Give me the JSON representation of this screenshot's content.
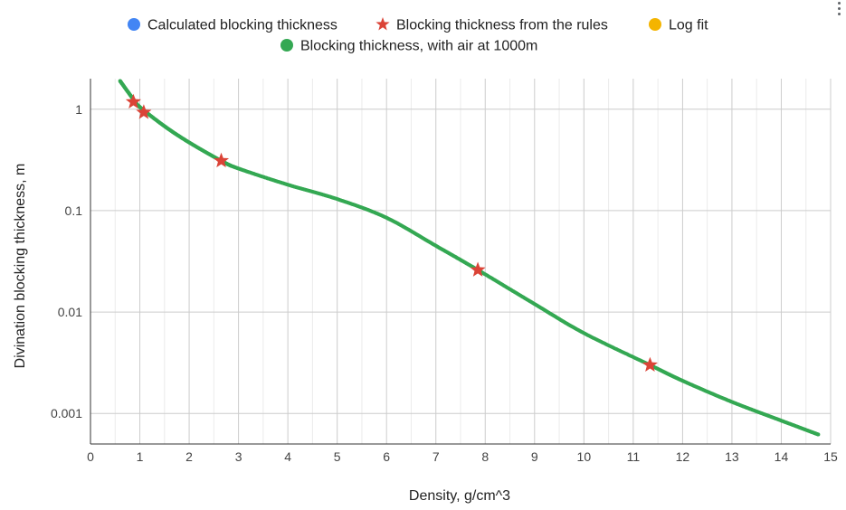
{
  "chart_data": {
    "type": "scatter",
    "xlabel": "Density, g/cm^3",
    "ylabel": "Divination blocking thickness, m",
    "xlim": [
      0,
      15
    ],
    "ylim": [
      0.0005,
      2
    ],
    "yscale": "log",
    "grid": true,
    "legend": "top",
    "x_ticks": [
      "0",
      "1",
      "2",
      "3",
      "4",
      "5",
      "6",
      "7",
      "8",
      "9",
      "10",
      "11",
      "12",
      "13",
      "14",
      "15"
    ],
    "y_ticks": [
      {
        "value": 1,
        "label": "1"
      },
      {
        "value": 0.1,
        "label": "0.1"
      },
      {
        "value": 0.01,
        "label": "0.01"
      },
      {
        "value": 0.001,
        "label": "0.001"
      }
    ],
    "series": [
      {
        "name": "Calculated blocking thickness",
        "color": "#4285f4",
        "marker": "circle",
        "points": []
      },
      {
        "name": "Blocking thickness from the rules",
        "color": "#db4437",
        "marker": "star",
        "points": [
          [
            0.87,
            1.18
          ],
          [
            1.08,
            0.93
          ],
          [
            2.65,
            0.31
          ],
          [
            7.85,
            0.026
          ],
          [
            11.34,
            0.003
          ]
        ]
      },
      {
        "name": "Log fit",
        "color": "#f4b400",
        "marker": "circle",
        "points": []
      },
      {
        "name": "Blocking thickness, with air at 1000m",
        "color": "#34a853",
        "marker": "circle",
        "curve": [
          [
            0.6,
            1.9
          ],
          [
            0.87,
            1.25
          ],
          [
            1.0,
            1.05
          ],
          [
            1.5,
            0.68
          ],
          [
            2.0,
            0.47
          ],
          [
            2.65,
            0.31
          ],
          [
            3.0,
            0.26
          ],
          [
            4.0,
            0.18
          ],
          [
            5.0,
            0.13
          ],
          [
            6.0,
            0.085
          ],
          [
            7.0,
            0.045
          ],
          [
            7.85,
            0.026
          ],
          [
            9.0,
            0.012
          ],
          [
            10.0,
            0.0062
          ],
          [
            11.34,
            0.003
          ],
          [
            12.0,
            0.0021
          ],
          [
            13.0,
            0.0013
          ],
          [
            14.0,
            0.00085
          ],
          [
            14.75,
            0.00062
          ]
        ]
      }
    ]
  }
}
